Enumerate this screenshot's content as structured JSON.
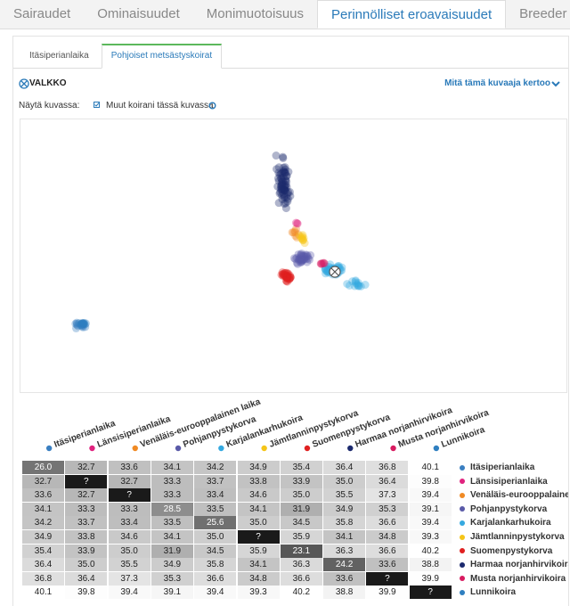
{
  "nav": {
    "tabs": [
      "Sairaudet",
      "Ominaisuudet",
      "Monimuotoisuus",
      "Perinnölliset eroavaisuudet",
      "Breeder Tool"
    ],
    "active": 3
  },
  "subtabs": {
    "tabs": [
      "Itäsiperianlaika",
      "Pohjoiset metsästyskoirat"
    ],
    "active": 1
  },
  "panel": {
    "dog_name": "VALKKO",
    "help_link": "Mitä tämä kuvaaja kertoo",
    "show_label": "Näytä kuvassa:",
    "option": "Muut koirani tässä kuvassa"
  },
  "table": {
    "columns": [
      {
        "name": "Itäsiperianlaika",
        "color": "#3a7fc1"
      },
      {
        "name": "Länsisiperianlaika",
        "color": "#e0237f"
      },
      {
        "name": "Venäläis-eurooppalainen laika",
        "color": "#f08a24"
      },
      {
        "name": "Pohjanpystykorva",
        "color": "#5a5aa8"
      },
      {
        "name": "Karjalankarhukoira",
        "color": "#35a9e0"
      },
      {
        "name": "Jämtlanninpystykorva",
        "color": "#f5c518"
      },
      {
        "name": "Suomenpystykorva",
        "color": "#e02020"
      },
      {
        "name": "Harmaa norjanhirvikoira",
        "color": "#1c2a6e"
      },
      {
        "name": "Musta norjanhirvikoira",
        "color": "#d81b60"
      },
      {
        "name": "Lunnikoira",
        "color": "#2f7fc0"
      }
    ],
    "rows": [
      {
        "label": "Itäsiperianlaika",
        "cells": [
          "26.0",
          "32.7",
          "33.6",
          "34.1",
          "34.2",
          "34.9",
          "35.4",
          "36.4",
          "36.8",
          "40.1"
        ]
      },
      {
        "label": "Länsisiperianlaika",
        "cells": [
          "32.7",
          "?",
          "32.7",
          "33.3",
          "33.7",
          "33.8",
          "33.9",
          "35.0",
          "36.4",
          "39.8"
        ]
      },
      {
        "label": "Venäläis-eurooppalaine...",
        "cells": [
          "33.6",
          "32.7",
          "?",
          "33.3",
          "33.4",
          "34.6",
          "35.0",
          "35.5",
          "37.3",
          "39.4"
        ]
      },
      {
        "label": "Pohjanpystykorva",
        "cells": [
          "34.1",
          "33.3",
          "33.3",
          "28.5",
          "33.5",
          "34.1",
          "31.9",
          "34.9",
          "35.3",
          "39.1"
        ]
      },
      {
        "label": "Karjalankarhukoira",
        "cells": [
          "34.2",
          "33.7",
          "33.4",
          "33.5",
          "25.6",
          "35.0",
          "34.5",
          "35.8",
          "36.6",
          "39.4"
        ]
      },
      {
        "label": "Jämtlanninpystykorva",
        "cells": [
          "34.9",
          "33.8",
          "34.6",
          "34.1",
          "35.0",
          "?",
          "35.9",
          "34.1",
          "34.8",
          "39.3"
        ]
      },
      {
        "label": "Suomenpystykorva",
        "cells": [
          "35.4",
          "33.9",
          "35.0",
          "31.9",
          "34.5",
          "35.9",
          "23.1",
          "36.3",
          "36.6",
          "40.2"
        ]
      },
      {
        "label": "Harmaa norjanhirvikoira",
        "cells": [
          "36.4",
          "35.0",
          "35.5",
          "34.9",
          "35.8",
          "34.1",
          "36.3",
          "24.2",
          "33.6",
          "38.8"
        ]
      },
      {
        "label": "Musta norjanhirvikoira",
        "cells": [
          "36.8",
          "36.4",
          "37.3",
          "35.3",
          "36.6",
          "34.8",
          "36.6",
          "33.6",
          "?",
          "39.9"
        ]
      },
      {
        "label": "Lunnikoira",
        "cells": [
          "40.1",
          "39.8",
          "39.4",
          "39.1",
          "39.4",
          "39.3",
          "40.2",
          "38.8",
          "39.9",
          "?"
        ]
      }
    ]
  }
}
